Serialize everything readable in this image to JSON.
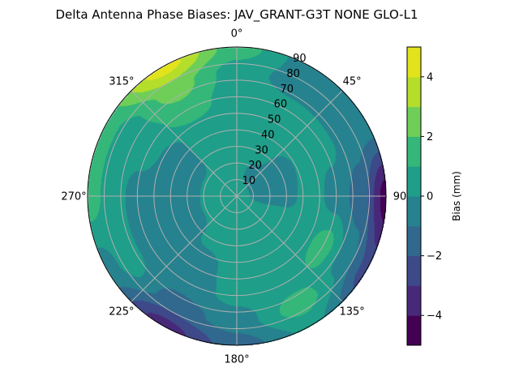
{
  "chart_data": {
    "type": "heatmap",
    "subtype": "polar-filled-contour",
    "title": "Delta Antenna Phase Biases: JAV_GRANT-G3T   NONE GLO-L1",
    "angular_ticks": [
      "0°",
      "45°",
      "90",
      "135°",
      "180°",
      "225°",
      "270°",
      "315°"
    ],
    "angular_tick_values": [
      0,
      45,
      90,
      135,
      180,
      225,
      270,
      315
    ],
    "radial_ticks": [
      "10",
      "20",
      "30",
      "40",
      "50",
      "60",
      "70",
      "80",
      "90"
    ],
    "radial_tick_values": [
      10,
      20,
      30,
      40,
      50,
      60,
      70,
      80,
      90
    ],
    "rlim": [
      0,
      90
    ],
    "theta_zero": "north",
    "theta_direction": "clockwise",
    "grid": true,
    "colorbar": {
      "label": "Bias (mm)",
      "colormap": "viridis",
      "levels": [
        -5,
        -4,
        -3,
        -2,
        -1,
        0,
        1,
        2,
        3,
        4,
        5
      ],
      "ticks": [
        "−4",
        "−2",
        "0",
        "2",
        "4"
      ],
      "tick_values": [
        -4,
        -2,
        0,
        2,
        4
      ],
      "colors": [
        "#440154",
        "#482878",
        "#3e4989",
        "#31688e",
        "#26828e",
        "#1f9e89",
        "#35b779",
        "#6ece58",
        "#b5de2b",
        "#e3e31b"
      ]
    },
    "grid_azimuths": [
      0,
      30,
      60,
      90,
      120,
      150,
      180,
      210,
      240,
      270,
      300,
      330
    ],
    "grid_radii": [
      0,
      15,
      30,
      45,
      60,
      75,
      90
    ],
    "values": [
      [
        0.5,
        0.5,
        0.5,
        0.5,
        0.5,
        0.5,
        1.5
      ],
      [
        0.5,
        -0.3,
        0.3,
        0.5,
        0.5,
        -0.5,
        -0.5
      ],
      [
        0.5,
        -0.5,
        -0.5,
        0.3,
        0.3,
        -0.5,
        -0.5
      ],
      [
        0.5,
        -0.5,
        -0.3,
        0.5,
        -0.5,
        -1.5,
        -4.5
      ],
      [
        0.5,
        0.5,
        0.5,
        0.5,
        1.5,
        -0.5,
        -2.5
      ],
      [
        0.5,
        0.5,
        0.5,
        0.5,
        0.5,
        1.5,
        0.3
      ],
      [
        0.5,
        0.5,
        0.5,
        0.5,
        0.3,
        -0.5,
        -1.5
      ],
      [
        0.5,
        0.5,
        0.3,
        -0.5,
        -0.5,
        -1.5,
        -3.5
      ],
      [
        0.5,
        0.5,
        -0.5,
        -0.5,
        -0.5,
        0.5,
        -0.5
      ],
      [
        0.5,
        0.5,
        -0.5,
        -0.5,
        -0.5,
        0.5,
        1.5
      ],
      [
        0.5,
        0.5,
        -0.5,
        -0.5,
        0.5,
        0.5,
        1.5
      ],
      [
        0.5,
        0.5,
        0.5,
        0.5,
        1.5,
        2.5,
        4.5
      ]
    ]
  }
}
